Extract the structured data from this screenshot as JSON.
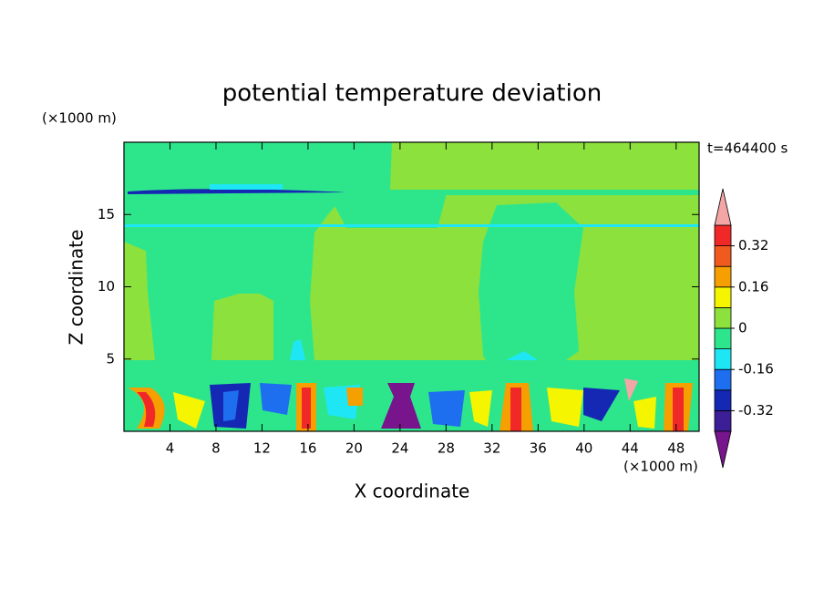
{
  "chart_data": {
    "type": "contour",
    "title": "potential temperature deviation",
    "xlabel": "X coordinate",
    "ylabel": "Z coordinate",
    "x_unit": "(×1000 m)",
    "y_unit": "(×1000 m)",
    "time_label": "t=464400 s",
    "xlim": [
      0,
      50
    ],
    "xticks": [
      4,
      8,
      12,
      16,
      20,
      24,
      28,
      32,
      36,
      40,
      44,
      48
    ],
    "ylim": [
      0,
      20
    ],
    "yticks": [
      5,
      10,
      15
    ],
    "colorbar": {
      "levels": [
        -0.4,
        -0.32,
        -0.24,
        -0.16,
        -0.08,
        0,
        0.08,
        0.16,
        0.24,
        0.32,
        0.4
      ],
      "colors": [
        "#78148c",
        "#3c1e96",
        "#1428b4",
        "#1e6ef0",
        "#1ee6f5",
        "#2de68c",
        "#8ce13c",
        "#f5f500",
        "#f5a000",
        "#f05a1e",
        "#f02828",
        "#f4a6a6"
      ],
      "ticks": [
        0.32,
        0.16,
        0,
        -0.16,
        -0.32
      ]
    }
  }
}
